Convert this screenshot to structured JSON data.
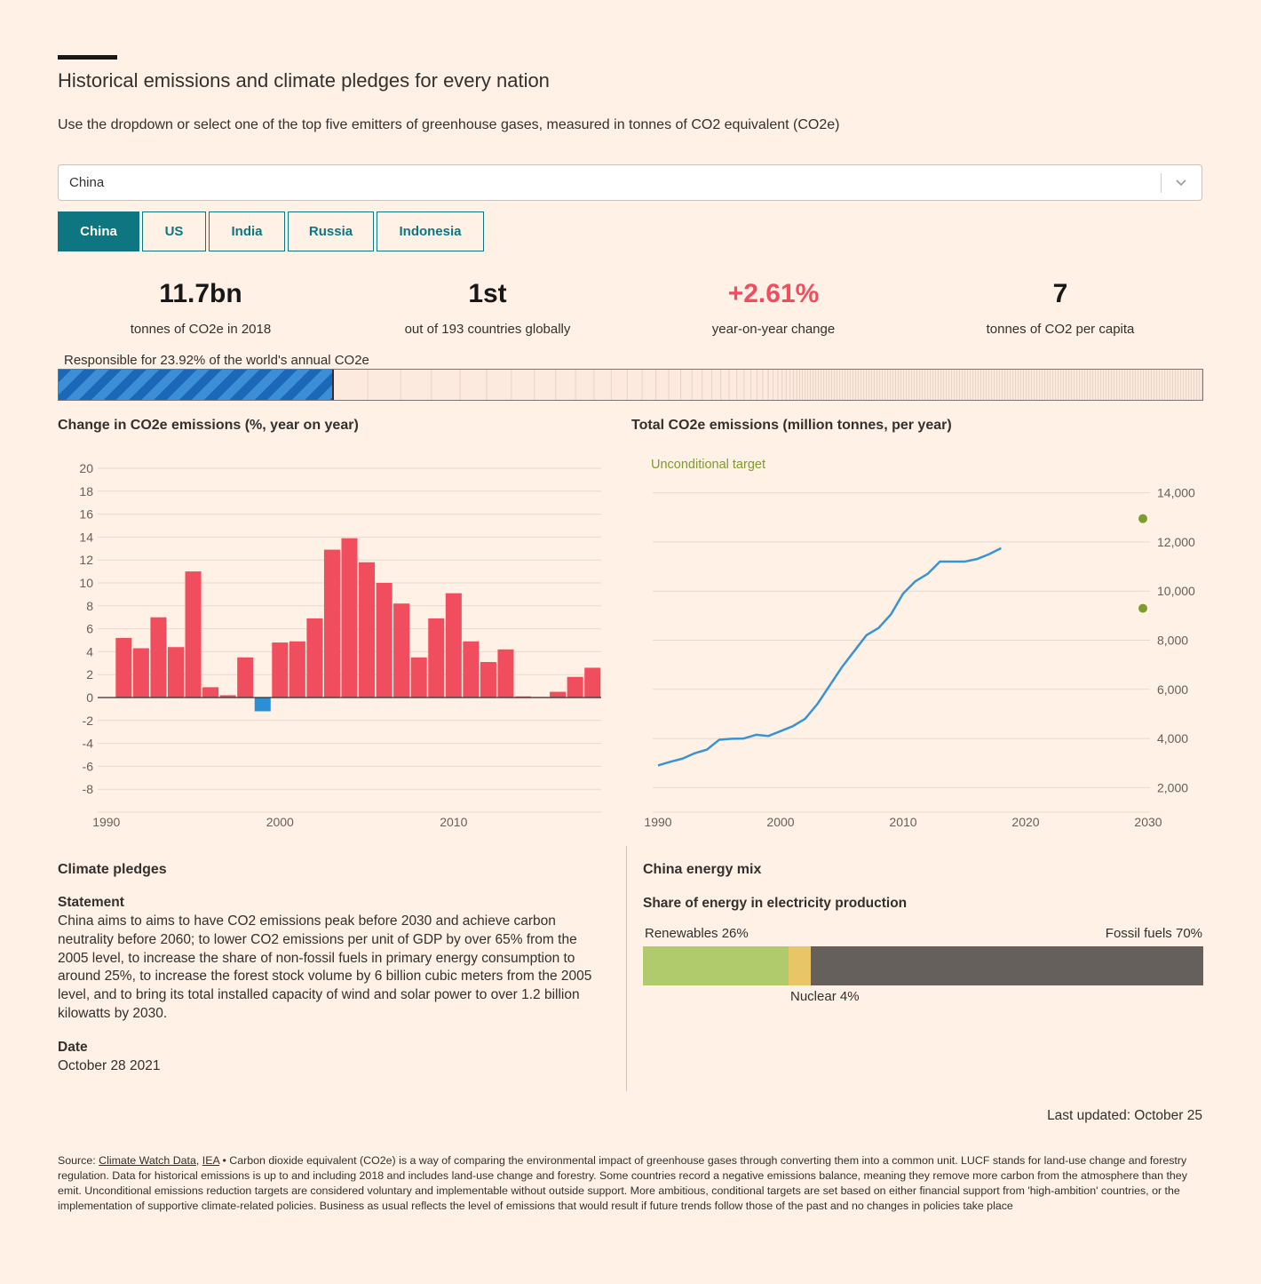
{
  "headline": "Historical emissions and climate pledges for every nation",
  "subhead": "Use the dropdown or select one of the top five emitters of greenhouse gases, measured in tonnes of CO2 equivalent (CO2e)",
  "dropdown": {
    "value": "China"
  },
  "tabs": [
    "China",
    "US",
    "India",
    "Russia",
    "Indonesia"
  ],
  "active_tab": "China",
  "stats": [
    {
      "value": "11.7bn",
      "label": "tonnes of CO2e in 2018"
    },
    {
      "value": "1st",
      "label": "out of 193 countries globally"
    },
    {
      "value": "+2.61%",
      "label": "year-on-year change"
    },
    {
      "value": "7",
      "label": "tonnes of CO2 per capita"
    }
  ],
  "share": {
    "label": "Responsible for 23.92% of the world's annual CO2e",
    "percent": 23.92
  },
  "colors": {
    "accent": "#0d7680",
    "positive": "#f04e5e",
    "negative": "#2b8fd6",
    "line": "#3a93d4",
    "target": "#7d9c2c",
    "renewables": "#b0cb6c",
    "nuclear": "#e8c566",
    "fossil": "#66605c"
  },
  "chart_data": [
    {
      "type": "bar",
      "title": "Change in CO2e emissions (%, year on year)",
      "x": [
        1991,
        1992,
        1993,
        1994,
        1995,
        1996,
        1997,
        1998,
        1999,
        2000,
        2001,
        2002,
        2003,
        2004,
        2005,
        2006,
        2007,
        2008,
        2009,
        2010,
        2011,
        2012,
        2013,
        2014,
        2015,
        2016,
        2017,
        2018
      ],
      "values": [
        5.2,
        4.3,
        7.0,
        4.4,
        11.0,
        0.9,
        0.2,
        3.5,
        -1.2,
        4.8,
        4.9,
        6.9,
        12.9,
        13.9,
        11.8,
        10.0,
        8.2,
        3.5,
        6.9,
        9.1,
        4.9,
        3.1,
        4.2,
        0.1,
        0.05,
        0.5,
        1.8,
        2.6
      ],
      "ylim": [
        -10,
        20
      ],
      "yticks": [
        20,
        18,
        16,
        14,
        12,
        10,
        8,
        6,
        4,
        2,
        0,
        -2,
        -4,
        -6,
        -8
      ],
      "xticks": [
        1990,
        2000,
        2010
      ]
    },
    {
      "type": "line",
      "title": "Total CO2e emissions (million tonnes, per year)",
      "x": [
        1990,
        1991,
        1992,
        1993,
        1994,
        1995,
        1996,
        1997,
        1998,
        1999,
        2000,
        2001,
        2002,
        2003,
        2004,
        2005,
        2006,
        2007,
        2008,
        2009,
        2010,
        2011,
        2012,
        2013,
        2014,
        2015,
        2016,
        2017,
        2018
      ],
      "values": [
        2900,
        3050,
        3180,
        3400,
        3550,
        3950,
        3990,
        4000,
        4150,
        4100,
        4300,
        4500,
        4800,
        5400,
        6150,
        6900,
        7550,
        8200,
        8500,
        9050,
        9900,
        10400,
        10700,
        11200,
        11200,
        11200,
        11300,
        11500,
        11750
      ],
      "targets": [
        {
          "label": "Unconditional target",
          "x": 2030,
          "value": 12950
        },
        {
          "x": 2030,
          "value": 9300
        }
      ],
      "target_label": "Unconditional target",
      "xlim": [
        1990,
        2030
      ],
      "ylim": [
        1000,
        15000
      ],
      "yticks": [
        14000,
        12000,
        10000,
        8000,
        6000,
        4000,
        2000
      ],
      "ytick_labels": [
        "14,000",
        "12,000",
        "10,000",
        "8,000",
        "6,000",
        "4,000",
        "2,000"
      ],
      "xticks": [
        1990,
        2000,
        2010,
        2020,
        2030
      ]
    }
  ],
  "pledges": {
    "title": "Climate pledges",
    "statement_label": "Statement",
    "statement": "China aims to aims to have CO2 emissions peak before 2030 and achieve carbon neutrality before 2060; to lower CO2 emissions per unit of GDP by over 65% from the 2005 level, to increase the share of non-fossil fuels in primary energy consumption to around 25%, to increase the forest stock volume by 6 billion cubic meters from the 2005 level, and to bring its total installed capacity of wind and solar power to over 1.2 billion kilowatts by 2030.",
    "date_label": "Date",
    "date": "October 28 2021"
  },
  "energy_mix": {
    "title": "China energy mix",
    "subtitle": "Share of energy in electricity production",
    "renewables_label": "Renewables 26%",
    "nuclear_label": "Nuclear 4%",
    "fossil_label": "Fossil fuels 70%",
    "renewables": 26,
    "nuclear": 4,
    "fossil": 70
  },
  "last_updated": "Last updated: October 25",
  "footnote": {
    "prefix": "Source: ",
    "link1": "Climate Watch Data",
    "comma": ", ",
    "link2": "IEA",
    "text": " • Carbon dioxide equivalent (CO2e) is a way of comparing the environmental impact of greenhouse gases through converting them into a common unit. LUCF stands for land-use change and forestry regulation. Data for historical emissions is up to and including 2018 and includes land-use change and forestry. Some countries record a negative emissions balance, meaning they remove more carbon from the atmosphere than they emit. Unconditional emissions reduction targets are considered voluntary and implementable without outside support. More ambitious, conditional targets are set based on either financial support from 'high-ambition' countries, or the implementation of supportive climate-related policies. Business as usual reflects the level of emissions that would result if future trends follow those of the past and no changes in policies take place"
  }
}
